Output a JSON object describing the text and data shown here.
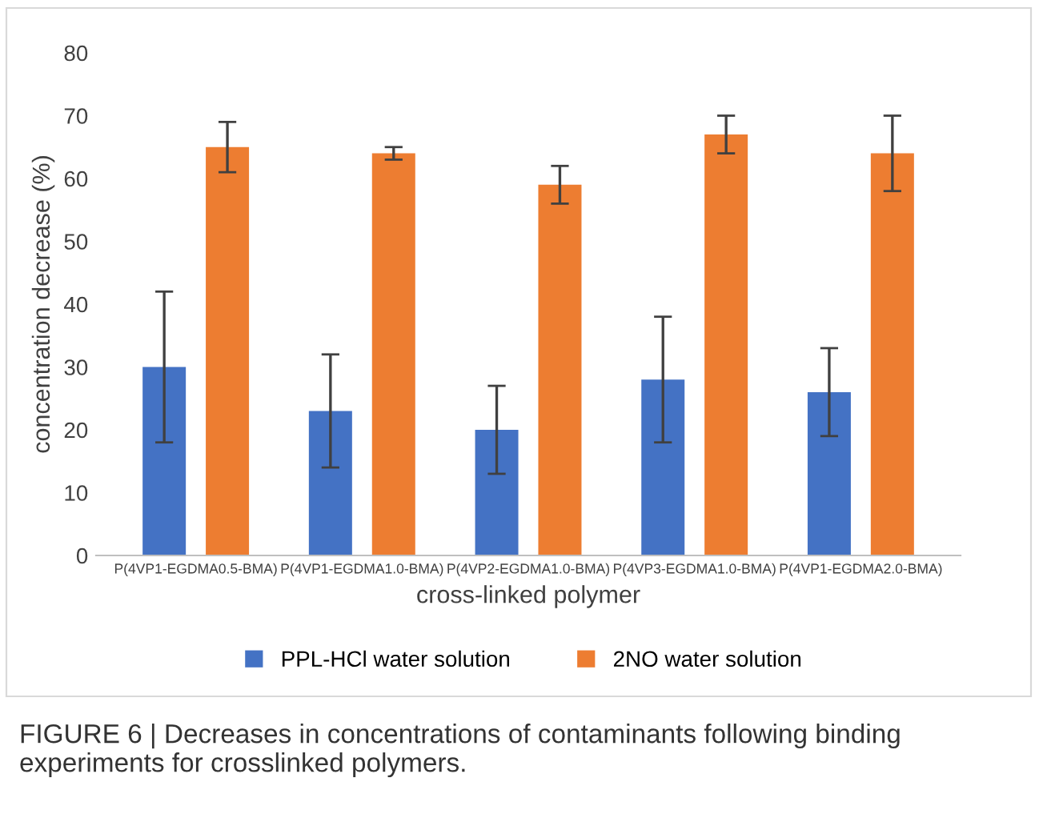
{
  "chart_data": {
    "type": "bar",
    "xlabel": "cross-linked polymer",
    "ylabel": "concentration decrease (%)",
    "categories": [
      "P(4VP1-EGDMA0.5-BMA)",
      "P(4VP1-EGDMA1.0-BMA)",
      "P(4VP2-EGDMA1.0-BMA)",
      "P(4VP3-EGDMA1.0-BMA)",
      "P(4VP1-EGDMA2.0-BMA)"
    ],
    "series": [
      {
        "name": "PPL-HCl water solution",
        "color": "#4472c4",
        "values": [
          30,
          23,
          20,
          28,
          26
        ],
        "errors": [
          12,
          9,
          7,
          10,
          7
        ]
      },
      {
        "name": "2NO water solution",
        "color": "#ed7d31",
        "values": [
          65,
          64,
          59,
          67,
          64
        ],
        "errors": [
          4,
          1,
          3,
          3,
          6
        ]
      }
    ],
    "ylim": [
      0,
      80
    ],
    "yticks": [
      0,
      10,
      20,
      30,
      40,
      50,
      60,
      70,
      80
    ],
    "grid": false,
    "legend": "bottom",
    "annotations": [
      "FIGURE 6 | Decreases in concentrations of contaminants following binding experiments for crosslinked polymers."
    ]
  }
}
